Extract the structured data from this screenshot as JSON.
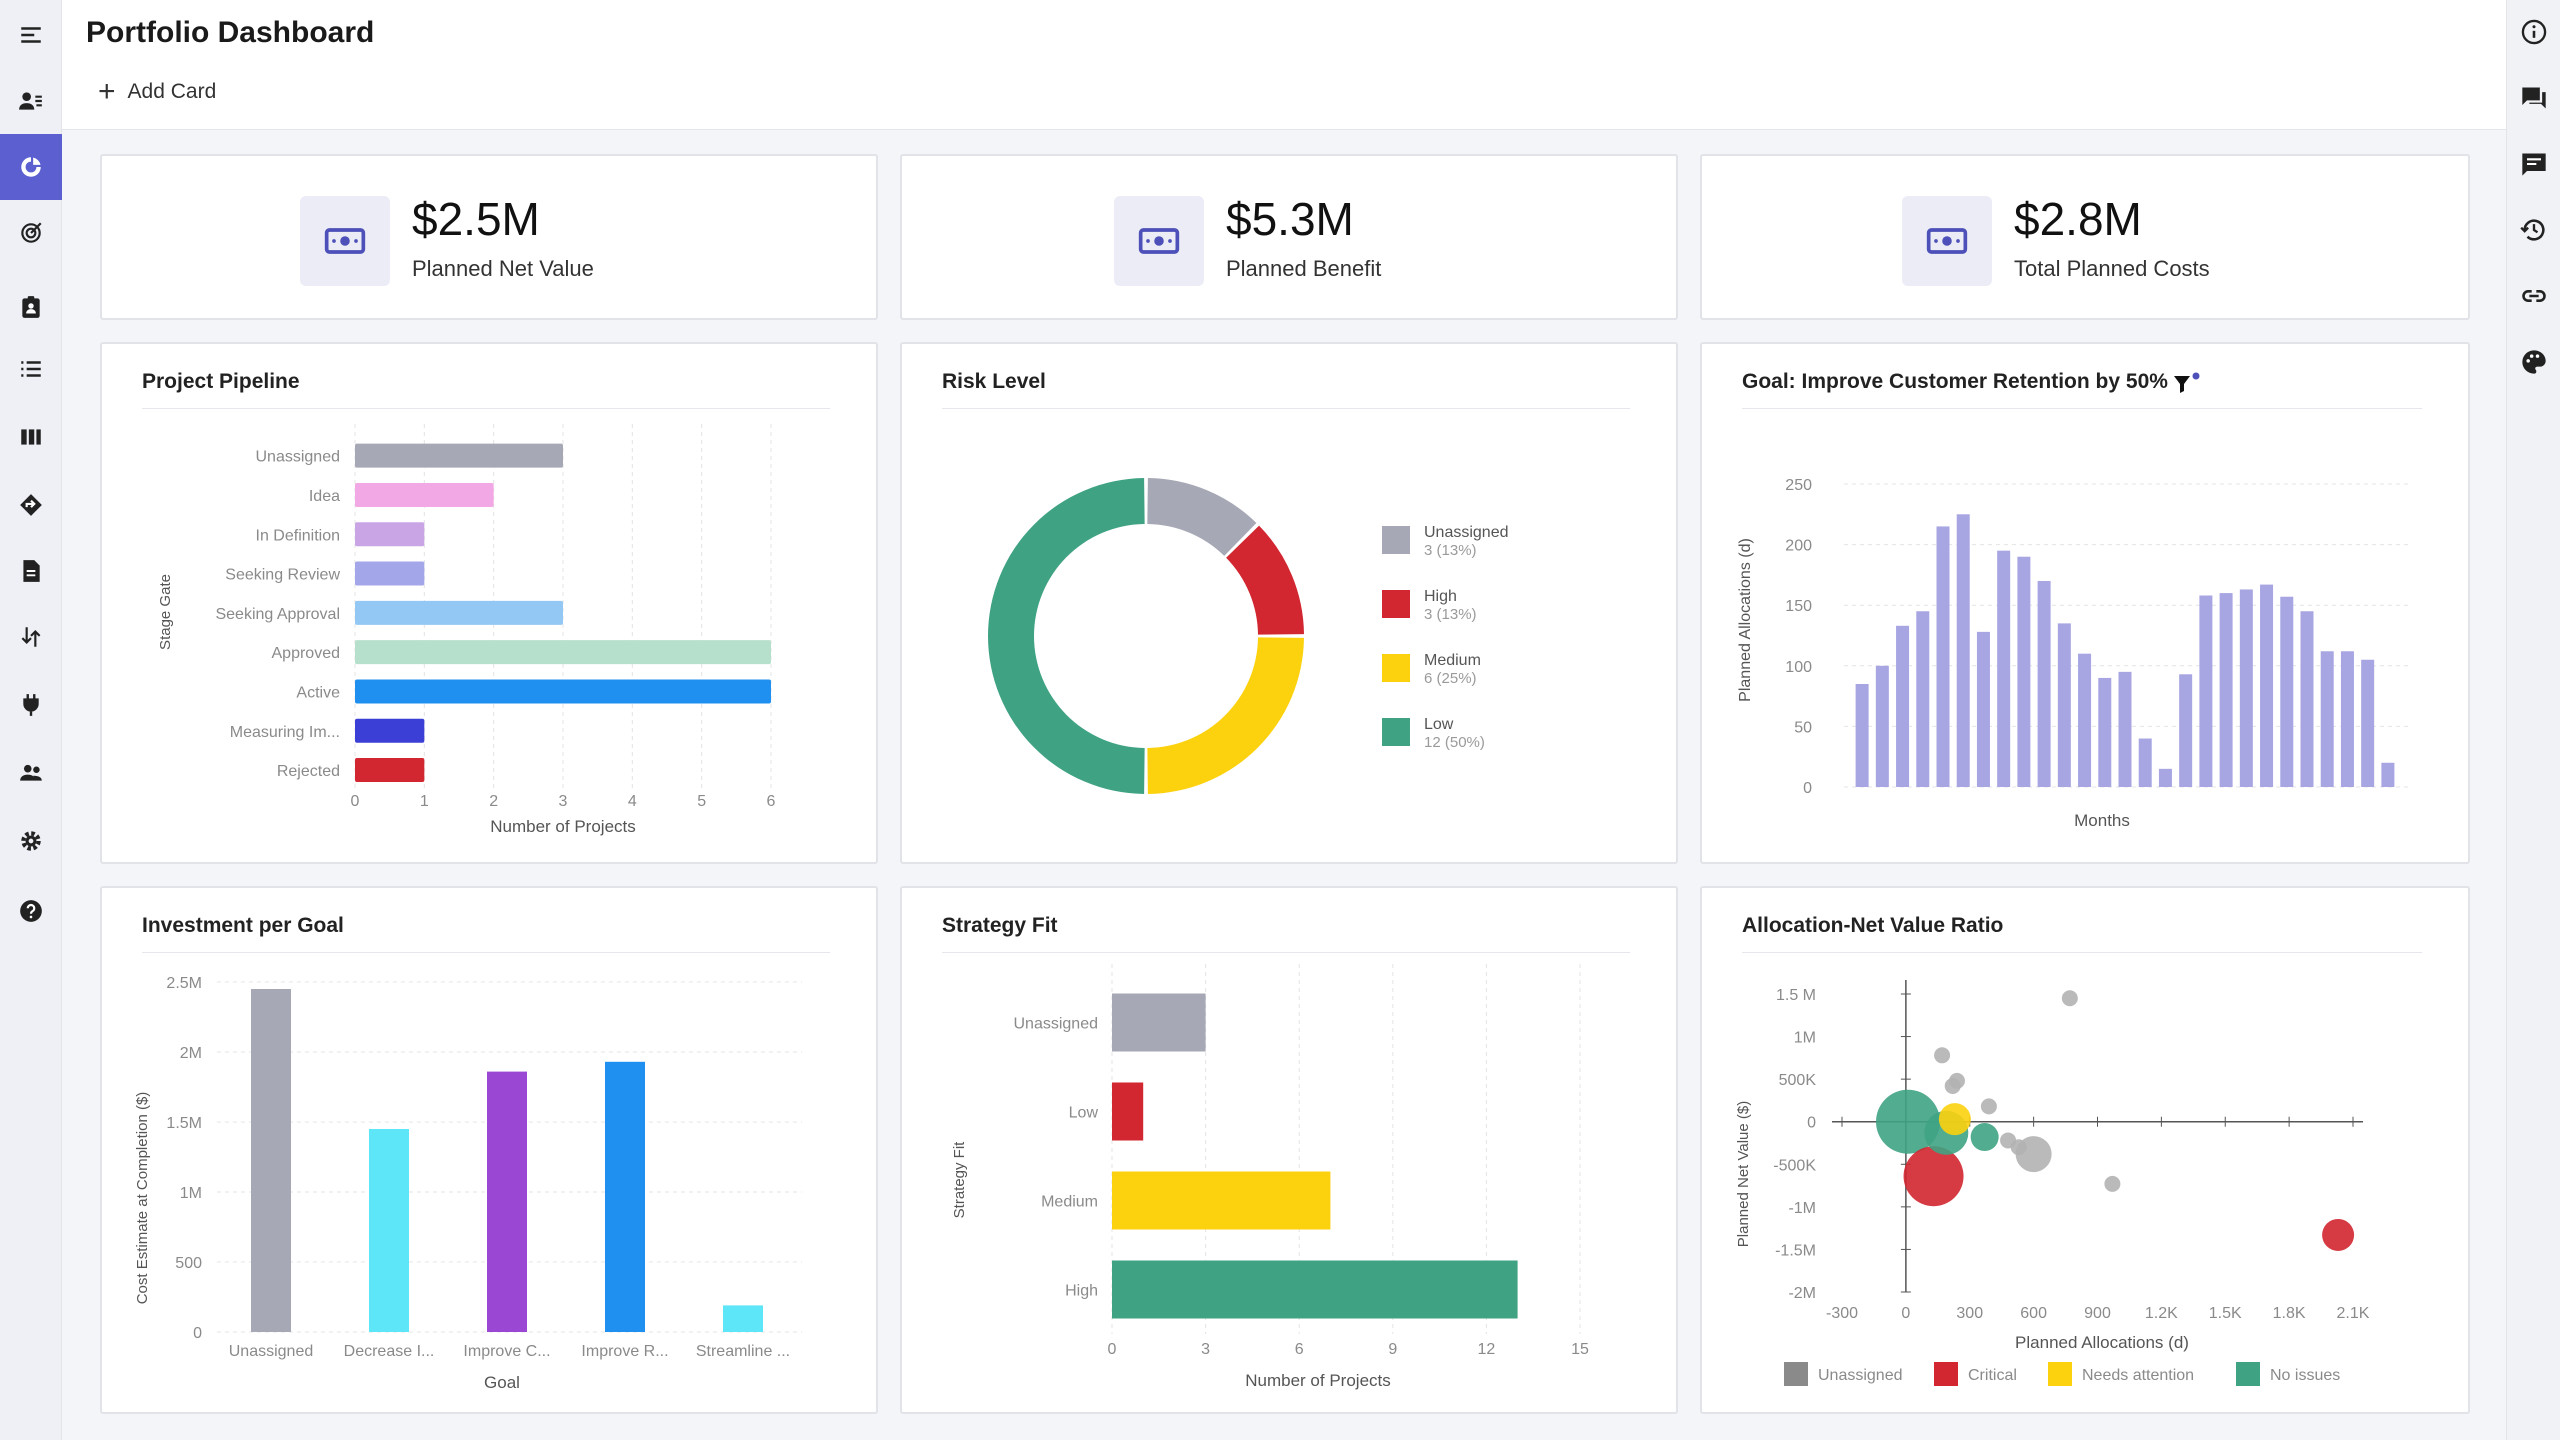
{
  "header": {
    "title": "Portfolio Dashboard",
    "add_card_label": "Add Card"
  },
  "sidebar": {
    "items": [
      {
        "icon": "menu-icon"
      },
      {
        "icon": "user-list-icon"
      },
      {
        "icon": "dashboard-icon",
        "active": true
      },
      {
        "icon": "target-icon"
      },
      {
        "icon": "clipboard-user-icon"
      },
      {
        "icon": "list-icon"
      },
      {
        "icon": "columns-icon"
      },
      {
        "icon": "diamond-direction-icon"
      },
      {
        "icon": "document-icon"
      },
      {
        "icon": "transfer-icon"
      },
      {
        "icon": "plug-icon"
      },
      {
        "icon": "people-icon"
      },
      {
        "icon": "settings-icon"
      },
      {
        "icon": "help-icon"
      }
    ]
  },
  "rightbar": {
    "items": [
      {
        "icon": "info-icon"
      },
      {
        "icon": "chat-icon"
      },
      {
        "icon": "feedback-icon"
      },
      {
        "icon": "history-icon"
      },
      {
        "icon": "link-icon"
      },
      {
        "icon": "palette-icon"
      }
    ]
  },
  "kpis": [
    {
      "value": "$2.5M",
      "label": "Planned Net Value",
      "icon": "money-icon"
    },
    {
      "value": "$5.3M",
      "label": "Planned Benefit",
      "icon": "money-icon"
    },
    {
      "value": "$2.8M",
      "label": "Total Planned Costs",
      "icon": "money-icon"
    }
  ],
  "colors": {
    "accent": "#5b5fd0",
    "green": "#3fa383",
    "red": "#d22630",
    "yellow": "#fcd20f",
    "gray": "#a6a8b5",
    "purple": "#a8a6e2"
  },
  "pipeline": {
    "title": "Project Pipeline",
    "chart_data": {
      "type": "bar",
      "orientation": "horizontal",
      "categories": [
        "Unassigned",
        "Idea",
        "In Definition",
        "Seeking Review",
        "Seeking Approval",
        "Approved",
        "Active",
        "Measuring Im...",
        "Rejected"
      ],
      "values": [
        3,
        2,
        1,
        1,
        3,
        6,
        6,
        1,
        1
      ],
      "bar_colors": [
        "#a6a8b5",
        "#f2a8e4",
        "#c9a5e6",
        "#a4a6ea",
        "#93c8f4",
        "#b6e0cb",
        "#1f8ff0",
        "#3b3fd6",
        "#d22630"
      ],
      "xticks": [
        "0",
        "1",
        "2",
        "3",
        "4",
        "5",
        "6"
      ],
      "xlim": [
        0,
        6
      ],
      "xlabel": "Number of Projects",
      "ylabel": "Stage Gate"
    }
  },
  "risk": {
    "title": "Risk Level",
    "chart_data": {
      "type": "pie",
      "donut": true,
      "slices": [
        {
          "label": "Unassigned",
          "value": 3,
          "pct_label": "3 (13%)",
          "color": "#a6a8b5"
        },
        {
          "label": "High",
          "value": 3,
          "pct_label": "3 (13%)",
          "color": "#d22630"
        },
        {
          "label": "Medium",
          "value": 6,
          "pct_label": "6 (25%)",
          "color": "#fcd20f"
        },
        {
          "label": "Low",
          "value": 12,
          "pct_label": "12 (50%)",
          "color": "#3fa383"
        }
      ]
    }
  },
  "goal": {
    "title": "Goal: Improve Customer Retention by 50%",
    "chart_data": {
      "type": "bar",
      "values": [
        85,
        100,
        133,
        145,
        215,
        225,
        128,
        195,
        190,
        170,
        135,
        110,
        90,
        95,
        40,
        15,
        93,
        158,
        160,
        163,
        167,
        157,
        145,
        112,
        112,
        105,
        20
      ],
      "yticks": [
        "0",
        "50",
        "100",
        "150",
        "200",
        "250"
      ],
      "ylim": [
        0,
        250
      ],
      "xlabel": "Months",
      "ylabel": "Planned Allocations (d)",
      "color": "#a8a6e2"
    }
  },
  "investment": {
    "title": "Investment per Goal",
    "chart_data": {
      "type": "bar",
      "categories": [
        "Unassigned",
        "Decrease I...",
        "Improve C...",
        "Improve R...",
        "Streamline ..."
      ],
      "values": [
        2450000,
        1450000,
        1860000,
        1930000,
        190000
      ],
      "bar_colors": [
        "#a6a8b5",
        "#5ce6f8",
        "#9a48d4",
        "#1f8ff0",
        "#5ce6f8"
      ],
      "yticks": [
        "0",
        "500",
        "1M",
        "1.5M",
        "2M",
        "2.5M"
      ],
      "ylim": [
        0,
        2500000
      ],
      "xlabel": "Goal",
      "ylabel": "Cost Estimate at Completion ($)"
    }
  },
  "strategy": {
    "title": "Strategy Fit",
    "chart_data": {
      "type": "bar",
      "orientation": "horizontal",
      "categories": [
        "Unassigned",
        "Low",
        "Medium",
        "High"
      ],
      "values": [
        3,
        1,
        7,
        13
      ],
      "bar_colors": [
        "#a6a8b5",
        "#d22630",
        "#fcd20f",
        "#3fa383"
      ],
      "xticks": [
        "0",
        "3",
        "6",
        "9",
        "12",
        "15"
      ],
      "xlim": [
        0,
        15
      ],
      "xlabel": "Number of Projects",
      "ylabel": "Strategy Fit"
    }
  },
  "allocation": {
    "title": "Allocation-Net Value Ratio",
    "chart_data": {
      "type": "scatter",
      "xticks": [
        "-300",
        "0",
        "300",
        "600",
        "900",
        "1.2K",
        "1.5K",
        "1.8K",
        "2.1K"
      ],
      "yticks": [
        "1.5 M",
        "1M",
        "500K",
        "0",
        "-500K",
        "-1M",
        "-1.5M",
        "-2M"
      ],
      "xlim": [
        -300,
        2100
      ],
      "ylim": [
        -2000000,
        1500000
      ],
      "xlabel": "Planned Allocations (d)",
      "ylabel": "Planned Net Value ($)",
      "legend": [
        {
          "label": "Unassigned",
          "color": "#8a8a8a"
        },
        {
          "label": "Critical",
          "color": "#d22630"
        },
        {
          "label": "Needs attention",
          "color": "#fcd20f"
        },
        {
          "label": "No issues",
          "color": "#3fa383"
        }
      ],
      "points": [
        {
          "x": 770,
          "y": 1450000,
          "size": 8,
          "status": "Unassigned"
        },
        {
          "x": 170,
          "y": 780000,
          "size": 8,
          "status": "Unassigned"
        },
        {
          "x": 240,
          "y": 480000,
          "size": 8,
          "status": "Unassigned"
        },
        {
          "x": 220,
          "y": 420000,
          "size": 8,
          "status": "Unassigned"
        },
        {
          "x": 390,
          "y": 180000,
          "size": 8,
          "status": "Unassigned"
        },
        {
          "x": 480,
          "y": -220000,
          "size": 8,
          "status": "Unassigned"
        },
        {
          "x": 530,
          "y": -300000,
          "size": 8,
          "status": "Unassigned"
        },
        {
          "x": 600,
          "y": -380000,
          "size": 18,
          "status": "Unassigned"
        },
        {
          "x": 970,
          "y": -730000,
          "size": 8,
          "status": "Unassigned"
        },
        {
          "x": 230,
          "y": 30000,
          "size": 16,
          "status": "Needs attention"
        },
        {
          "x": 10,
          "y": 0,
          "size": 32,
          "status": "No issues"
        },
        {
          "x": 190,
          "y": -130000,
          "size": 22,
          "status": "No issues"
        },
        {
          "x": 370,
          "y": -180000,
          "size": 14,
          "status": "No issues"
        },
        {
          "x": 130,
          "y": -640000,
          "size": 30,
          "status": "Critical"
        },
        {
          "x": 2030,
          "y": -1330000,
          "size": 16,
          "status": "Critical"
        }
      ]
    }
  }
}
